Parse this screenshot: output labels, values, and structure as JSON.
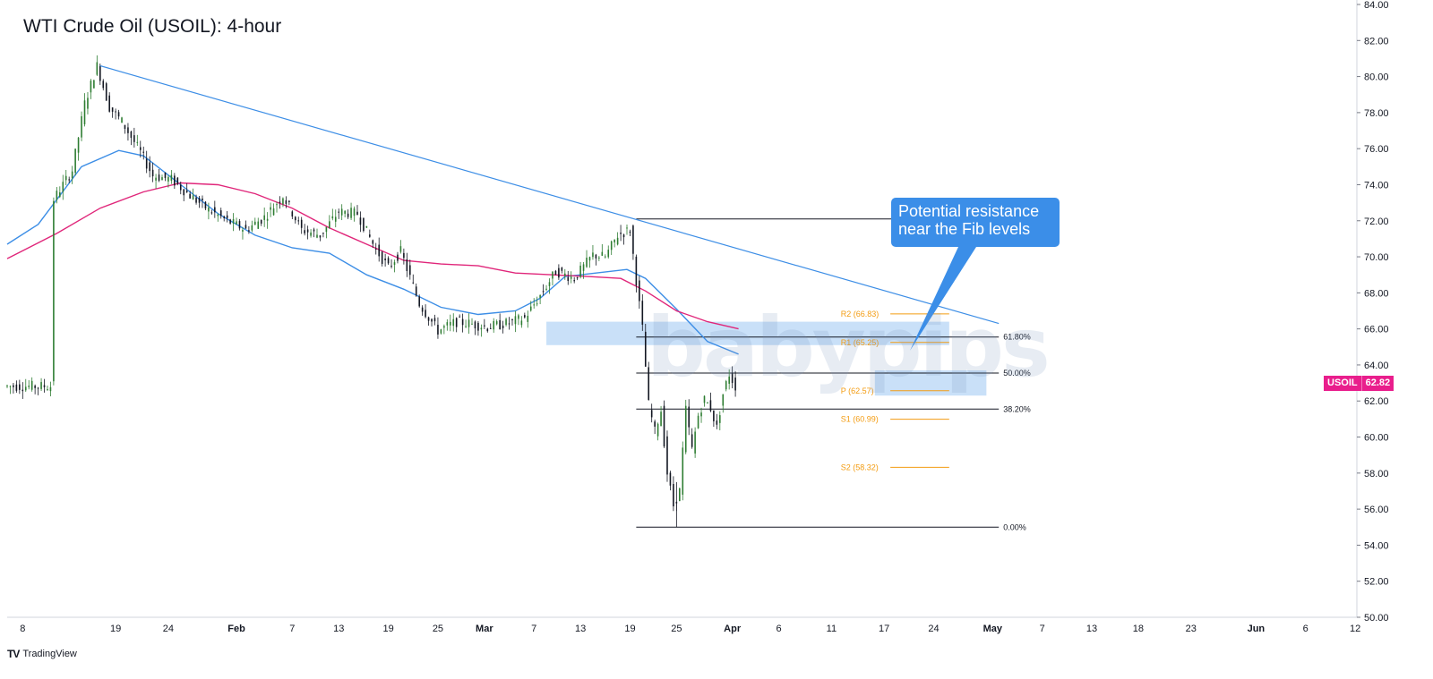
{
  "header": {
    "title": "WTI Crude Oil (USOIL): 4-hour"
  },
  "callout": {
    "line1": "Potential resistance",
    "line2": "near the Fib levels"
  },
  "price_tag": {
    "symbol": "USOIL",
    "price": "62.82"
  },
  "footer": {
    "brand": "TradingView"
  },
  "watermark": {
    "text": "babypips"
  },
  "colors": {
    "up_candle": "#2e7d32",
    "down_candle": "#131722",
    "trendline": "#3d8ee6",
    "ma_short": "#3d8ee6",
    "ma_long": "#e0267a",
    "zone": "#3d8ee6",
    "pivot": "#f39c12",
    "fib": "#131722",
    "price_tag": "#e91e8c"
  },
  "chart_data": {
    "type": "candlestick",
    "instrument": "USOIL",
    "timeframe": "4-hour",
    "y_axis": {
      "range": [
        50,
        84
      ],
      "ticks": [
        "84.00",
        "82.00",
        "80.00",
        "78.00",
        "76.00",
        "74.00",
        "72.00",
        "70.00",
        "68.00",
        "66.00",
        "64.00",
        "62.00",
        "60.00",
        "58.00",
        "56.00",
        "54.00",
        "52.00",
        "50.00"
      ]
    },
    "x_axis": {
      "labels": [
        "8",
        "19",
        "24",
        "Feb",
        "7",
        "13",
        "19",
        "25",
        "Mar",
        "7",
        "13",
        "19",
        "25",
        "Apr",
        "6",
        "11",
        "17",
        "24",
        "May",
        "7",
        "13",
        "18",
        "23",
        "Jun",
        "6",
        "12"
      ]
    },
    "price_path": [
      [
        8,
        73.2
      ],
      [
        11,
        74.8
      ],
      [
        13,
        78.5
      ],
      [
        15,
        80.6
      ],
      [
        17,
        78.3
      ],
      [
        19,
        77.5
      ],
      [
        22,
        75.8
      ],
      [
        24,
        74.5
      ],
      [
        27,
        74.3
      ],
      [
        30,
        73.4
      ],
      [
        33,
        72.6
      ],
      [
        36,
        72.0
      ],
      [
        39,
        71.5
      ],
      [
        42,
        72.2
      ],
      [
        45,
        73.4
      ],
      [
        48,
        71.5
      ],
      [
        51,
        71.2
      ],
      [
        54,
        72.5
      ],
      [
        57,
        72.4
      ],
      [
        60,
        70.4
      ],
      [
        62,
        69.4
      ],
      [
        64,
        70.3
      ],
      [
        67,
        67.4
      ],
      [
        70,
        65.9
      ],
      [
        73,
        66.4
      ],
      [
        75,
        66.3
      ],
      [
        78,
        66.1
      ],
      [
        81,
        66.3
      ],
      [
        84,
        66.6
      ],
      [
        87,
        68.1
      ],
      [
        89,
        69.2
      ],
      [
        92,
        68.8
      ],
      [
        95,
        70.1
      ],
      [
        97,
        70.0
      ],
      [
        99,
        71.2
      ],
      [
        101,
        71.5
      ],
      [
        102,
        68.7
      ],
      [
        103,
        66.0
      ],
      [
        104,
        61.8
      ],
      [
        105,
        60.3
      ],
      [
        106,
        61.5
      ],
      [
        107,
        58.0
      ],
      [
        108,
        56.2
      ],
      [
        109,
        57.0
      ],
      [
        110,
        61.5
      ],
      [
        111,
        59.3
      ],
      [
        112,
        61.2
      ],
      [
        113,
        62.1
      ],
      [
        114,
        61.6
      ],
      [
        115,
        60.5
      ],
      [
        116,
        62.4
      ],
      [
        117,
        63.5
      ],
      [
        118,
        62.82
      ]
    ],
    "trendline": {
      "from": [
        15,
        80.6
      ],
      "to": [
        160,
        66.3
      ]
    },
    "moving_averages": [
      {
        "points": [
          [
            0,
            70.7
          ],
          [
            5,
            71.8
          ],
          [
            12,
            75.0
          ],
          [
            18,
            75.9
          ],
          [
            22,
            75.6
          ],
          [
            28,
            74.0
          ],
          [
            34,
            72.4
          ],
          [
            40,
            71.2
          ],
          [
            46,
            70.5
          ],
          [
            52,
            70.2
          ],
          [
            58,
            69.0
          ],
          [
            64,
            68.2
          ],
          [
            70,
            67.2
          ],
          [
            76,
            66.8
          ],
          [
            82,
            67.0
          ],
          [
            86,
            67.7
          ],
          [
            90,
            68.9
          ],
          [
            95,
            69.1
          ],
          [
            100,
            69.3
          ],
          [
            103,
            68.8
          ],
          [
            108,
            67.1
          ],
          [
            113,
            65.3
          ],
          [
            118,
            64.6
          ]
        ]
      },
      {
        "points": [
          [
            0,
            69.9
          ],
          [
            8,
            71.3
          ],
          [
            15,
            72.7
          ],
          [
            22,
            73.6
          ],
          [
            28,
            74.1
          ],
          [
            34,
            74.0
          ],
          [
            40,
            73.5
          ],
          [
            46,
            72.7
          ],
          [
            52,
            71.6
          ],
          [
            58,
            70.7
          ],
          [
            64,
            69.8
          ],
          [
            70,
            69.6
          ],
          [
            76,
            69.5
          ],
          [
            82,
            69.1
          ],
          [
            88,
            69.0
          ],
          [
            94,
            68.9
          ],
          [
            99,
            68.8
          ],
          [
            103,
            68.1
          ],
          [
            108,
            67.0
          ],
          [
            113,
            66.4
          ],
          [
            118,
            66.0
          ]
        ]
      }
    ],
    "fib_levels": [
      {
        "label": "61.80%",
        "value": 65.55
      },
      {
        "label": "50.00%",
        "value": 63.55
      },
      {
        "label": "38.20%",
        "value": 61.55
      },
      {
        "label": "0.00%",
        "value": 55.0
      }
    ],
    "fib_high": 72.1,
    "pivots": [
      {
        "label": "R2 (66.83)",
        "value": 66.83
      },
      {
        "label": "R1 (65.25)",
        "value": 65.25
      },
      {
        "label": "P (62.57)",
        "value": 62.57
      },
      {
        "label": "S1 (60.99)",
        "value": 60.99
      },
      {
        "label": "S2 (58.32)",
        "value": 58.32
      }
    ],
    "resistance_zones": [
      {
        "range": [
          65.1,
          66.4
        ]
      },
      {
        "range": [
          62.3,
          63.7
        ]
      }
    ],
    "last_price": 62.82
  }
}
